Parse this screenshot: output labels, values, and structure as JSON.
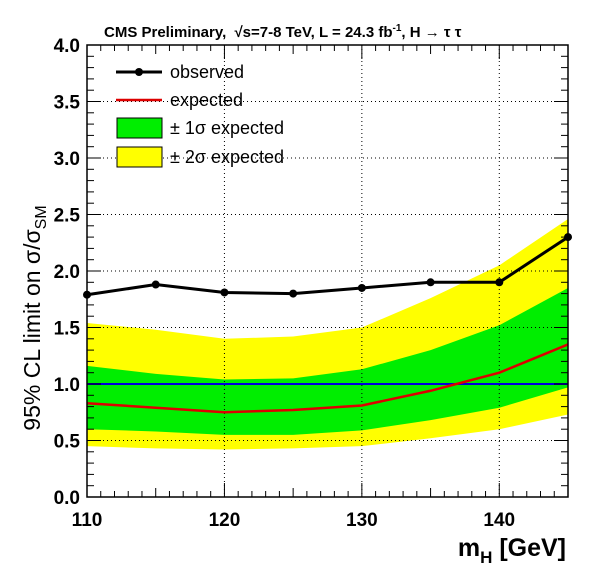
{
  "chart_data": {
    "type": "line",
    "title": "CMS Preliminary, √s=7-8 TeV, L = 24.3 fb⁻¹, H → τ τ",
    "title_parts": {
      "prefix": "CMS  Preliminary,",
      "sqrt_symbol": "√",
      "s_energy": "s=7-8 TeV, L = 24.3 fb",
      "superscript": "-1",
      "suffix": ", H → τ τ"
    },
    "xlabel": "m_H [GeV]",
    "xlabel_parts": {
      "main": "m",
      "subscript": "H",
      "unit": " [GeV]"
    },
    "ylabel": "95% CL limit on σ/σ_SM",
    "ylabel_parts": {
      "main": "95% CL limit on  σ/σ",
      "subscript": "SM"
    },
    "xlim": [
      110,
      145
    ],
    "ylim": [
      0,
      4.0
    ],
    "x_ticks": [
      110,
      120,
      130,
      140
    ],
    "x_tick_labels": [
      "110",
      "120",
      "130",
      "140"
    ],
    "y_ticks": [
      0,
      0.5,
      1.0,
      1.5,
      2.0,
      2.5,
      3.0,
      3.5,
      4.0
    ],
    "y_tick_labels": [
      "0.0",
      "0.5",
      "1.0",
      "1.5",
      "2.0",
      "2.5",
      "3.0",
      "3.5",
      "4.0"
    ],
    "grid": true,
    "legend_position": "top-left",
    "x": [
      110,
      115,
      120,
      125,
      130,
      135,
      140,
      145
    ],
    "series": [
      {
        "name": "observed",
        "values": [
          1.79,
          1.88,
          1.81,
          1.8,
          1.85,
          1.9,
          1.9,
          2.3
        ],
        "color": "#000000",
        "markers": true
      },
      {
        "name": "expected",
        "values": [
          0.83,
          0.79,
          0.75,
          0.77,
          0.81,
          0.94,
          1.1,
          1.35
        ],
        "color": "#dd0000",
        "markers": false
      }
    ],
    "bands": [
      {
        "name": "± 2σ expected",
        "color": "#ffff00",
        "lower": [
          0.45,
          0.43,
          0.42,
          0.43,
          0.45,
          0.52,
          0.6,
          0.73
        ],
        "upper": [
          1.54,
          1.48,
          1.4,
          1.42,
          1.5,
          1.76,
          2.05,
          2.46
        ]
      },
      {
        "name": "± 1σ expected",
        "color": "#00ee00",
        "lower": [
          0.6,
          0.58,
          0.55,
          0.55,
          0.59,
          0.68,
          0.79,
          0.97
        ],
        "upper": [
          1.16,
          1.09,
          1.04,
          1.05,
          1.13,
          1.3,
          1.52,
          1.85
        ]
      }
    ],
    "reference_line": {
      "y": 1.0,
      "color": "#0000dd"
    },
    "legend": [
      {
        "label": "observed",
        "kind": "line-marker",
        "color": "#000000"
      },
      {
        "label": "expected",
        "kind": "line",
        "color": "#dd0000"
      },
      {
        "label": "± 1σ expected",
        "kind": "box",
        "color": "#00ee00"
      },
      {
        "label": "± 2σ expected",
        "kind": "box",
        "color": "#ffff00"
      }
    ]
  }
}
